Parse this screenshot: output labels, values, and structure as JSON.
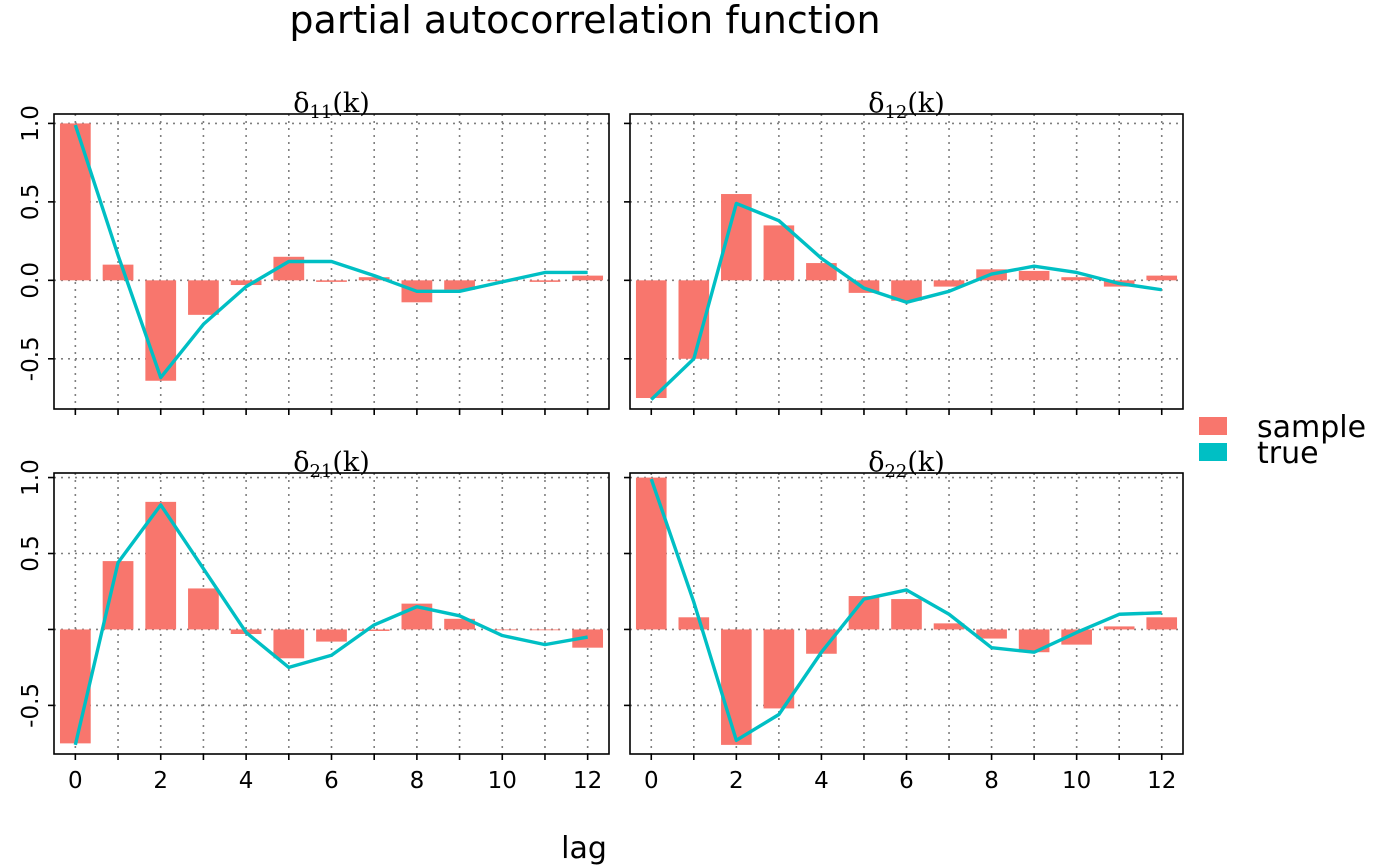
{
  "colors": {
    "sample": "#F8766D",
    "true": "#00BFC4",
    "grid": "#7f7f7f",
    "frame": "#000000"
  },
  "chart_data": {
    "type": "bar",
    "title": "partial autocorrelation function",
    "xlabel": "lag",
    "ylabel": "",
    "grid": true,
    "legend_position": "right",
    "legend": [
      {
        "name": "sample",
        "kind": "bar",
        "color": "#F8766D"
      },
      {
        "name": "true",
        "kind": "line",
        "color": "#00BFC4"
      }
    ],
    "x": [
      0,
      1,
      2,
      3,
      4,
      5,
      6,
      7,
      8,
      9,
      10,
      11,
      12
    ],
    "x_ticks": [
      0,
      2,
      4,
      6,
      8,
      10,
      12
    ],
    "x_tick_labels": [
      "0",
      "2",
      "4",
      "6",
      "8",
      "10",
      "12"
    ],
    "xlim": [
      -0.5,
      12.5
    ],
    "rows": [
      {
        "ylim": [
          -0.82,
          1.06
        ],
        "y_ticks": [
          -0.5,
          0.0,
          0.5,
          1.0
        ],
        "y_tick_labels": [
          "-0.5",
          "0.0",
          "0.5",
          "1.0"
        ],
        "panels": [
          {
            "strip": {
              "main": "δ",
              "sub": "11",
              "tail": "(k)"
            },
            "series": [
              {
                "name": "sample",
                "type": "bar",
                "values": [
                  1.0,
                  0.1,
                  -0.64,
                  -0.22,
                  -0.03,
                  0.15,
                  -0.01,
                  0.02,
                  -0.14,
                  -0.06,
                  0.0,
                  -0.01,
                  0.03
                ]
              },
              {
                "name": "true",
                "type": "line",
                "values": [
                  0.99,
                  0.16,
                  -0.62,
                  -0.28,
                  -0.04,
                  0.12,
                  0.12,
                  0.03,
                  -0.07,
                  -0.07,
                  -0.01,
                  0.05,
                  0.05
                ]
              }
            ]
          },
          {
            "strip": {
              "main": "δ",
              "sub": "12",
              "tail": "(k)"
            },
            "series": [
              {
                "name": "sample",
                "type": "bar",
                "values": [
                  -0.75,
                  -0.5,
                  0.55,
                  0.35,
                  0.11,
                  -0.08,
                  -0.13,
                  -0.04,
                  0.07,
                  0.06,
                  0.02,
                  -0.04,
                  0.03
                ]
              },
              {
                "name": "true",
                "type": "line",
                "values": [
                  -0.76,
                  -0.5,
                  0.49,
                  0.38,
                  0.14,
                  -0.05,
                  -0.14,
                  -0.07,
                  0.04,
                  0.09,
                  0.05,
                  -0.02,
                  -0.06
                ]
              }
            ]
          }
        ]
      },
      {
        "ylim": [
          -0.82,
          1.03
        ],
        "y_ticks": [
          -0.5,
          0.0,
          0.5,
          1.0
        ],
        "y_tick_labels": [
          "-0.5",
          "",
          "0.5",
          "1.0"
        ],
        "panels": [
          {
            "strip": {
              "main": "δ",
              "sub": "21",
              "tail": "(k)"
            },
            "series": [
              {
                "name": "sample",
                "type": "bar",
                "values": [
                  -0.75,
                  0.45,
                  0.84,
                  0.27,
                  -0.03,
                  -0.19,
                  -0.08,
                  -0.01,
                  0.17,
                  0.07,
                  0.0,
                  0.0,
                  -0.12
                ]
              },
              {
                "name": "true",
                "type": "line",
                "values": [
                  -0.76,
                  0.44,
                  0.82,
                  0.4,
                  -0.02,
                  -0.25,
                  -0.17,
                  0.03,
                  0.15,
                  0.09,
                  -0.04,
                  -0.1,
                  -0.05
                ]
              }
            ]
          },
          {
            "strip": {
              "main": "δ",
              "sub": "22",
              "tail": "(k)"
            },
            "series": [
              {
                "name": "sample",
                "type": "bar",
                "values": [
                  1.0,
                  0.08,
                  -0.76,
                  -0.52,
                  -0.16,
                  0.22,
                  0.2,
                  0.04,
                  -0.06,
                  -0.15,
                  -0.1,
                  0.02,
                  0.08
                ]
              },
              {
                "name": "true",
                "type": "line",
                "values": [
                  0.99,
                  0.18,
                  -0.73,
                  -0.56,
                  -0.15,
                  0.2,
                  0.26,
                  0.1,
                  -0.12,
                  -0.15,
                  -0.02,
                  0.1,
                  0.11
                ]
              }
            ]
          }
        ]
      }
    ]
  }
}
